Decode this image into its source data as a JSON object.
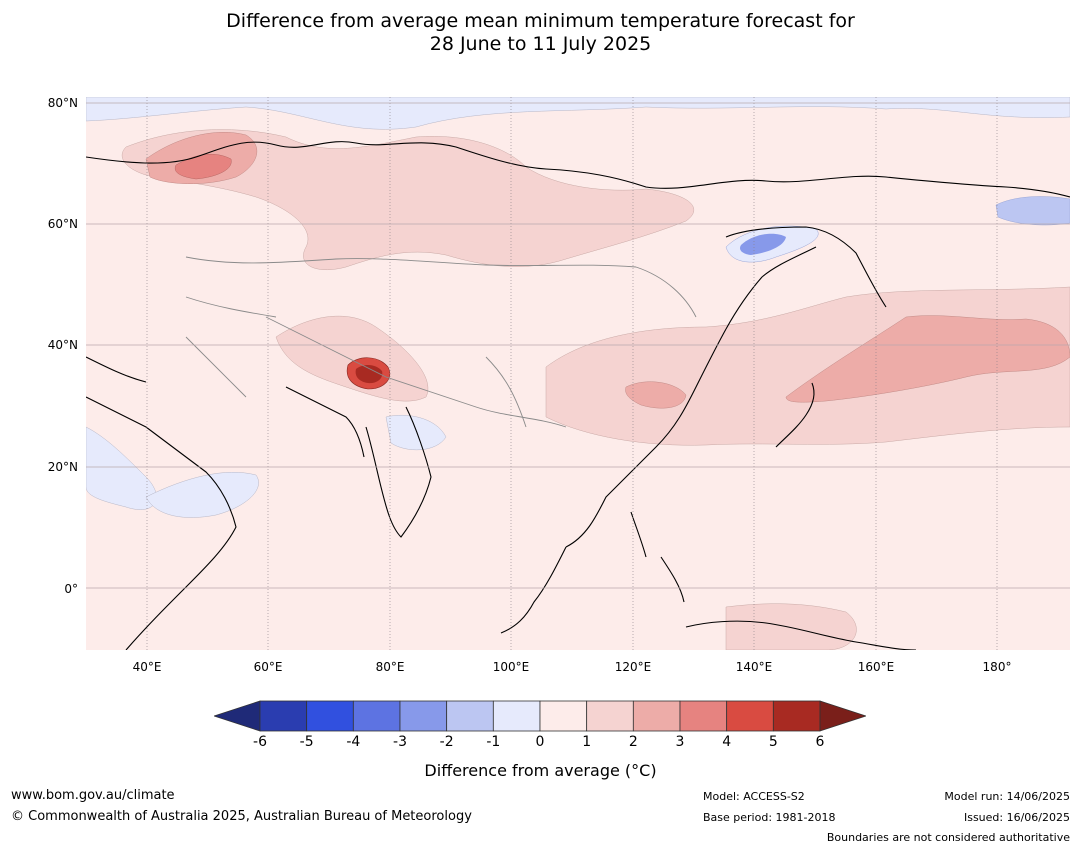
{
  "title_line1": "Difference from average mean minimum temperature forecast for",
  "title_line2": "28 June to 11 July 2025",
  "map": {
    "lon_range": [
      30,
      192
    ],
    "lat_range": [
      -10,
      81
    ],
    "lat_labels": [
      "80°N",
      "60°N",
      "40°N",
      "20°N",
      "0°"
    ],
    "lat_values": [
      80,
      60,
      40,
      20,
      0
    ],
    "lon_labels": [
      "40°E",
      "60°E",
      "80°E",
      "100°E",
      "120°E",
      "140°E",
      "160°E",
      "180°"
    ],
    "lon_values": [
      40,
      60,
      80,
      100,
      120,
      140,
      160,
      180
    ]
  },
  "colorbar": {
    "ticks": [
      "-6",
      "-5",
      "-4",
      "-3",
      "-2",
      "-1",
      "0",
      "1",
      "2",
      "3",
      "4",
      "5",
      "6"
    ],
    "colors": [
      "#2a3db0",
      "#3150df",
      "#5d73e2",
      "#8799ea",
      "#bcc6f2",
      "#e6eafc",
      "#fdecea",
      "#f5d3d1",
      "#edaca8",
      "#e68380",
      "#d94b41",
      "#a82a22"
    ],
    "under_color": "#1f2a78",
    "over_color": "#7a1f1a",
    "label": "Difference from average (°C)"
  },
  "footer": {
    "website": "www.bom.gov.au/climate",
    "copyright": "© Commonwealth of Australia 2025, Australian Bureau of Meteorology",
    "model": "Model: ACCESS-S2",
    "base_period": "Base period: 1981-2018",
    "model_run": "Model run: 14/06/2025",
    "issued": "Issued: 16/06/2025",
    "disclaimer": "Boundaries are not considered authoritative"
  }
}
